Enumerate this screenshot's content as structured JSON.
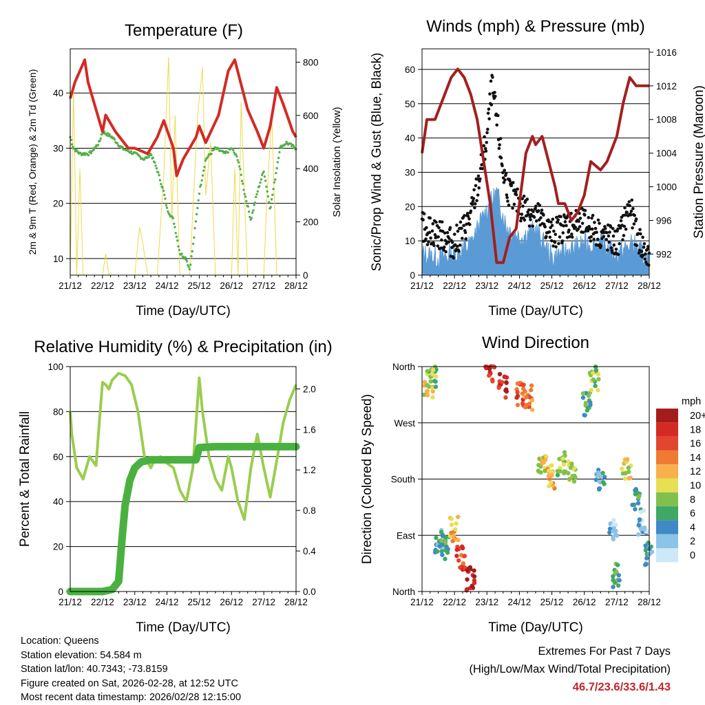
{
  "chart_data": [
    {
      "type": "line",
      "title": "Temperature (F)",
      "xlabel": "Time (Day/UTC)",
      "ylabel": "2m & 9m T (Red, Orange) & 2m Td (Green)",
      "y2label": "Solar Insolation (Yellow)",
      "ylim": [
        7,
        48
      ],
      "y2lim": [
        0,
        850
      ],
      "xlim": [
        0,
        7
      ],
      "x_tick_labels": [
        "21/12",
        "22/12",
        "23/12",
        "24/12",
        "25/12",
        "26/12",
        "27/12",
        "28/12"
      ],
      "y_ticks": [
        10,
        20,
        30,
        40
      ],
      "y2_ticks": [
        0,
        200,
        400,
        600,
        800
      ],
      "series": [
        {
          "name": "2m T",
          "color": "#d42a24",
          "x": [
            0,
            0.15,
            0.3,
            0.45,
            0.55,
            0.8,
            1.0,
            1.1,
            1.4,
            1.8,
            2.0,
            2.4,
            2.7,
            2.9,
            3.2,
            3.3,
            3.5,
            3.9,
            4.0,
            4.2,
            4.6,
            4.9,
            5.1,
            5.5,
            5.8,
            6.0,
            6.2,
            6.4,
            6.6,
            6.9,
            7.0
          ],
          "values": [
            39,
            42,
            44,
            46,
            42,
            37,
            33,
            36,
            33,
            30,
            30,
            29,
            32,
            35,
            30,
            25,
            28,
            32,
            34,
            31,
            36,
            44,
            46,
            37,
            33,
            30,
            34,
            41,
            38,
            33,
            32
          ]
        },
        {
          "name": "2m Td",
          "color": "#54b04a",
          "x": [
            0,
            0.1,
            0.3,
            0.6,
            0.9,
            1.0,
            1.3,
            1.6,
            2.0,
            2.3,
            2.5,
            2.7,
            2.9,
            3.0,
            3.2,
            3.4,
            3.6,
            3.7,
            3.8,
            4.0,
            4.2,
            4.5,
            4.8,
            5.0,
            5.2,
            5.4,
            5.6,
            5.8,
            6.0,
            6.2,
            6.5,
            6.7,
            7.0
          ],
          "values": [
            32,
            30,
            29,
            29,
            31,
            33,
            32,
            30,
            29,
            28,
            29,
            26,
            22,
            19,
            17,
            11,
            10,
            8,
            12,
            22,
            28,
            30,
            29,
            30,
            28,
            22,
            17,
            22,
            26,
            19,
            30,
            31,
            30
          ]
        },
        {
          "name": "Solar Insolation",
          "color": "#f0d84a",
          "axis": "y2",
          "x": [
            0,
            0.1,
            0.2,
            0.3,
            0.4,
            0.5,
            1.0,
            1.1,
            1.2,
            1.3,
            2.0,
            2.15,
            2.25,
            2.4,
            2.7,
            2.9,
            3.05,
            3.15,
            3.25,
            3.4,
            3.7,
            3.95,
            4.1,
            4.2,
            4.35,
            4.5,
            5.0,
            5.1,
            5.2,
            5.3,
            5.4,
            5.5,
            6.0,
            6.1,
            6.25,
            6.4,
            6.5
          ],
          "values": [
            0,
            700,
            0,
            400,
            0,
            0,
            0,
            80,
            0,
            0,
            0,
            180,
            120,
            0,
            0,
            380,
            820,
            200,
            600,
            0,
            0,
            600,
            780,
            300,
            500,
            0,
            0,
            400,
            0,
            650,
            300,
            0,
            0,
            300,
            600,
            0,
            0
          ]
        }
      ]
    },
    {
      "type": "line",
      "title": "Winds (mph) & Pressure (mb)",
      "xlabel": "Time (Day/UTC)",
      "ylabel": "Sonic/Prop Wind & Gust (Blue, Black)",
      "y2label": "Station Pressure (Maroon)",
      "ylim": [
        0,
        66
      ],
      "y2lim": [
        989.5,
        1016.4
      ],
      "xlim": [
        0,
        7
      ],
      "x_tick_labels": [
        "21/12",
        "22/12",
        "23/12",
        "24/12",
        "25/12",
        "26/12",
        "27/12",
        "28/12"
      ],
      "y_ticks": [
        0,
        10,
        20,
        30,
        40,
        50,
        60
      ],
      "y2_ticks": [
        992,
        996,
        1000,
        1004,
        1008,
        1012,
        1016
      ],
      "series": [
        {
          "name": "Station Pressure",
          "color": "#a31f1f",
          "axis": "y2",
          "x": [
            0,
            0.15,
            0.4,
            0.6,
            0.9,
            1.1,
            1.3,
            1.5,
            1.7,
            1.9,
            2.1,
            2.3,
            2.5,
            2.7,
            2.9,
            3.0,
            3.2,
            3.4,
            3.5,
            3.7,
            3.9,
            4.1,
            4.2,
            4.4,
            4.6,
            4.8,
            5.0,
            5.2,
            5.5,
            5.7,
            6.0,
            6.2,
            6.4,
            6.6,
            6.8,
            7.0
          ],
          "values": [
            1004,
            1008,
            1008,
            1010,
            1013,
            1014,
            1013,
            1011,
            1008,
            1003,
            998,
            991,
            991,
            994,
            995,
            998,
            1004,
            1006,
            1005,
            1006,
            1003,
            1000,
            998,
            998,
            996,
            997,
            999,
            1003,
            1002,
            1003,
            1006,
            1010,
            1013,
            1012,
            1012,
            1012
          ]
        },
        {
          "name": "Wind",
          "color": "#5b9bd5",
          "x": [
            0,
            0.5,
            1.0,
            1.5,
            2.0,
            2.3,
            2.6,
            3.0,
            3.5,
            4.0,
            4.5,
            5.0,
            5.5,
            6.0,
            6.5,
            7.0
          ],
          "values": [
            6,
            5,
            6,
            9,
            19,
            24,
            14,
            11,
            13,
            5,
            7,
            9,
            9,
            6,
            9,
            4
          ]
        },
        {
          "name": "Gust",
          "color": "#111111",
          "x": [
            0,
            0.5,
            1.0,
            1.5,
            1.8,
            2.0,
            2.15,
            2.3,
            2.5,
            2.7,
            3.0,
            3.5,
            4.0,
            4.5,
            5.0,
            5.5,
            6.0,
            6.4,
            6.6,
            7.0
          ],
          "values": [
            14,
            12,
            9,
            17,
            30,
            40,
            55,
            45,
            30,
            24,
            20,
            18,
            12,
            15,
            15,
            12,
            9,
            20,
            12,
            4
          ]
        }
      ]
    },
    {
      "type": "line",
      "title": "Relative Humidity (%) & Precipitation (in)",
      "xlabel": "Time (Day/UTC)",
      "ylabel": "Percent & Total Rainfall",
      "ylim": [
        0,
        100
      ],
      "y2lim": [
        0,
        2.22
      ],
      "xlim": [
        0,
        7
      ],
      "x_tick_labels": [
        "21/12",
        "22/12",
        "23/12",
        "24/12",
        "25/12",
        "26/12",
        "27/12",
        "28/12"
      ],
      "y_ticks": [
        0,
        20,
        40,
        60,
        80,
        100
      ],
      "y2_ticks": [
        "0.0",
        "0.4",
        "0.8",
        "1.2",
        "1.6",
        "2.0"
      ],
      "series": [
        {
          "name": "Relative Humidity",
          "color": "#9acd50",
          "x": [
            0,
            0.05,
            0.2,
            0.4,
            0.6,
            0.8,
            0.9,
            1.0,
            1.1,
            1.2,
            1.3,
            1.5,
            1.7,
            1.9,
            2.1,
            2.3,
            2.5,
            2.6,
            2.8,
            3.0,
            3.2,
            3.4,
            3.6,
            3.8,
            4.0,
            4.1,
            4.3,
            4.5,
            4.7,
            4.9,
            5.0,
            5.2,
            5.4,
            5.6,
            5.8,
            6.0,
            6.2,
            6.4,
            6.6,
            6.8,
            7.0
          ],
          "values": [
            80,
            70,
            55,
            50,
            60,
            56,
            75,
            93,
            92,
            90,
            94,
            97,
            96,
            92,
            80,
            60,
            55,
            58,
            60,
            57,
            55,
            45,
            40,
            55,
            95,
            80,
            60,
            50,
            45,
            60,
            55,
            40,
            32,
            55,
            70,
            55,
            42,
            58,
            75,
            85,
            92
          ]
        },
        {
          "name": "Total Precipitation",
          "color": "#4ab141",
          "axis": "y2",
          "x": [
            0,
            0.5,
            1.0,
            1.3,
            1.5,
            1.6,
            1.7,
            1.85,
            2.0,
            2.2,
            2.5,
            3.0,
            3.5,
            3.9,
            4.0,
            4.5,
            5.0,
            5.5,
            6.0,
            6.5,
            7.0
          ],
          "values": [
            0,
            0,
            0,
            0.02,
            0.1,
            0.5,
            0.85,
            1.1,
            1.22,
            1.28,
            1.3,
            1.3,
            1.3,
            1.3,
            1.42,
            1.43,
            1.43,
            1.43,
            1.43,
            1.43,
            1.43
          ]
        }
      ]
    },
    {
      "type": "scatter",
      "title": "Wind Direction",
      "xlabel": "Time (Day/UTC)",
      "ylabel": "Direction (Colored By Speed)",
      "ylim": [
        0,
        360
      ],
      "xlim": [
        0,
        7
      ],
      "x_tick_labels": [
        "21/12",
        "22/12",
        "23/12",
        "24/12",
        "25/12",
        "26/12",
        "27/12",
        "28/12"
      ],
      "y_tick_labels": [
        "North",
        "East",
        "South",
        "West",
        "North"
      ],
      "legend_title": "mph",
      "legend_labels": [
        "20+",
        "18",
        "16",
        "14",
        "12",
        "10",
        "8",
        "6",
        "4",
        "2",
        "0"
      ],
      "legend_colors": [
        "#a51c1c",
        "#d42a24",
        "#e2462e",
        "#f07a32",
        "#f8b04c",
        "#e8df55",
        "#82c04e",
        "#3fa866",
        "#3f89c4",
        "#8cc3e8",
        "#cde8f7"
      ],
      "clusters": [
        {
          "x": 0.2,
          "y": 330,
          "speed": 10
        },
        {
          "x": 0.3,
          "y": 345,
          "speed": 8
        },
        {
          "x": 0.5,
          "y": 80,
          "speed": 4
        },
        {
          "x": 0.7,
          "y": 70,
          "speed": 6
        },
        {
          "x": 1.0,
          "y": 100,
          "speed": 12
        },
        {
          "x": 1.2,
          "y": 55,
          "speed": 16
        },
        {
          "x": 1.5,
          "y": 20,
          "speed": 20
        },
        {
          "x": 2.1,
          "y": 355,
          "speed": 18
        },
        {
          "x": 2.5,
          "y": 330,
          "speed": 18
        },
        {
          "x": 3.0,
          "y": 315,
          "speed": 16
        },
        {
          "x": 3.3,
          "y": 310,
          "speed": 14
        },
        {
          "x": 3.7,
          "y": 200,
          "speed": 10
        },
        {
          "x": 4.0,
          "y": 185,
          "speed": 12
        },
        {
          "x": 4.3,
          "y": 205,
          "speed": 8
        },
        {
          "x": 4.6,
          "y": 190,
          "speed": 10
        },
        {
          "x": 5.1,
          "y": 300,
          "speed": 6
        },
        {
          "x": 5.3,
          "y": 340,
          "speed": 8
        },
        {
          "x": 5.5,
          "y": 180,
          "speed": 4
        },
        {
          "x": 5.9,
          "y": 100,
          "speed": 2
        },
        {
          "x": 6.0,
          "y": 25,
          "speed": 6
        },
        {
          "x": 6.3,
          "y": 200,
          "speed": 10
        },
        {
          "x": 6.6,
          "y": 150,
          "speed": 6
        },
        {
          "x": 6.8,
          "y": 110,
          "speed": 2
        },
        {
          "x": 7.0,
          "y": 60,
          "speed": 4
        }
      ]
    }
  ],
  "footer": {
    "location": "Location: Queens",
    "elevation": "Station elevation: 54.584 m",
    "latlon": "Station lat/lon: 40.7343; -73.8159",
    "created": "Figure created on Sat, 2026-02-28, at 12:52 UTC",
    "recent": "Most recent data timestamp: 2026/02/28 12:15:00"
  },
  "extremes": {
    "title": "Extremes For Past 7 Days",
    "subtitle": "(High/Low/Max Wind/Total Precipitation)",
    "values": "46.7/23.6/33.6/1.43"
  }
}
